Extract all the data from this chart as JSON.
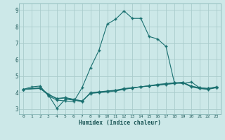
{
  "xlabel": "Humidex (Indice chaleur)",
  "background_color": "#cce8e8",
  "grid_color": "#aacccc",
  "line_color": "#1a7070",
  "xlim": [
    -0.5,
    23.5
  ],
  "ylim": [
    2.7,
    9.4
  ],
  "xticks": [
    0,
    1,
    2,
    3,
    4,
    5,
    6,
    7,
    8,
    9,
    10,
    11,
    12,
    13,
    14,
    15,
    16,
    17,
    18,
    19,
    20,
    21,
    22,
    23
  ],
  "yticks": [
    3,
    4,
    5,
    6,
    7,
    8,
    9
  ],
  "line1_x": [
    0,
    1,
    2,
    3,
    4,
    5,
    6,
    7,
    8,
    9,
    10,
    11,
    12,
    13,
    14,
    15,
    16,
    17,
    18,
    19,
    20,
    21,
    22,
    23
  ],
  "line1_y": [
    4.2,
    4.35,
    4.4,
    3.8,
    3.55,
    3.5,
    3.45,
    4.3,
    5.5,
    6.55,
    8.15,
    8.45,
    8.95,
    8.5,
    8.5,
    7.4,
    7.25,
    6.8,
    4.6,
    4.55,
    4.65,
    4.3,
    4.25,
    4.35
  ],
  "line2_x": [
    0,
    2,
    3,
    4,
    5,
    6,
    7,
    8,
    9,
    10,
    11,
    12,
    13,
    14,
    15,
    16,
    17,
    18,
    19,
    20,
    21,
    22,
    23
  ],
  "line2_y": [
    4.2,
    4.25,
    3.85,
    3.05,
    3.6,
    3.55,
    3.45,
    4.0,
    4.05,
    4.1,
    4.15,
    4.25,
    4.3,
    4.35,
    4.4,
    4.45,
    4.5,
    4.55,
    4.6,
    4.35,
    4.25,
    4.2,
    4.3
  ],
  "line3_x": [
    0,
    2,
    3,
    4,
    5,
    6,
    7,
    8,
    9,
    10,
    11,
    12,
    13,
    14,
    15,
    16,
    17,
    18,
    19,
    20,
    21,
    22,
    23
  ],
  "line3_y": [
    4.2,
    4.28,
    3.88,
    3.62,
    3.68,
    3.58,
    3.48,
    3.98,
    4.03,
    4.08,
    4.13,
    4.22,
    4.29,
    4.36,
    4.41,
    4.47,
    4.52,
    4.57,
    4.61,
    4.38,
    4.27,
    4.22,
    4.31
  ],
  "line4_x": [
    0,
    2,
    3,
    4,
    5,
    6,
    7,
    8,
    9,
    10,
    11,
    12,
    13,
    14,
    15,
    16,
    17,
    18,
    19,
    20,
    21,
    22,
    23
  ],
  "line4_y": [
    4.2,
    4.3,
    3.9,
    3.65,
    3.7,
    3.6,
    3.5,
    3.95,
    4.0,
    4.05,
    4.1,
    4.2,
    4.28,
    4.35,
    4.42,
    4.5,
    4.55,
    4.6,
    4.62,
    4.4,
    4.3,
    4.25,
    4.32
  ]
}
